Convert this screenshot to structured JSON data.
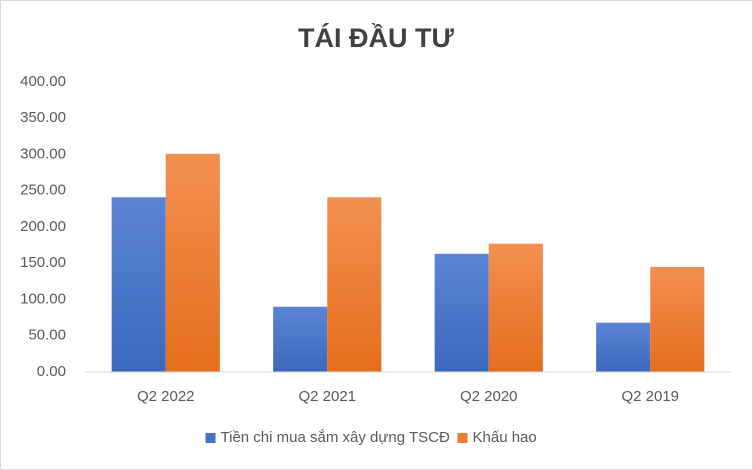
{
  "chart_data": {
    "type": "bar",
    "title": "TÁI ĐẦU TƯ",
    "categories": [
      "Q2 2022",
      "Q2 2021",
      "Q2 2020",
      "Q2 2019"
    ],
    "series": [
      {
        "name": "Tiền chi mua sắm xây dựng TSCĐ",
        "color": "#4472c4",
        "values": [
          241,
          90,
          163,
          68
        ]
      },
      {
        "name": "Khấu hao",
        "color": "#ed7d31",
        "values": [
          301,
          241,
          177,
          145
        ]
      }
    ],
    "ylim": [
      0,
      400
    ],
    "yticks": [
      {
        "value": 0,
        "label": "0.00"
      },
      {
        "value": 50,
        "label": "50.00"
      },
      {
        "value": 100,
        "label": "100.00"
      },
      {
        "value": 150,
        "label": "150.00"
      },
      {
        "value": 200,
        "label": "200.00"
      },
      {
        "value": 250,
        "label": "250.00"
      },
      {
        "value": 300,
        "label": "300.00"
      },
      {
        "value": 350,
        "label": "350.00"
      },
      {
        "value": 400,
        "label": "400.00"
      }
    ],
    "grid": false,
    "legend": "bottom"
  }
}
